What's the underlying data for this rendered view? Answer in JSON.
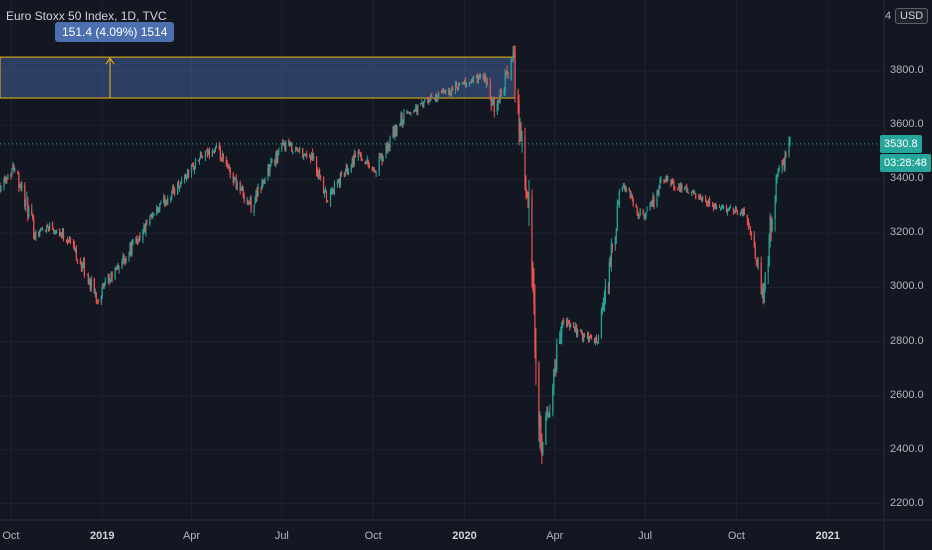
{
  "header": {
    "title": "Euro Stoxx 50 Index, 1D, TVC",
    "axis_menu_glyph": "4",
    "currency": "USD"
  },
  "measure_tool": {
    "label": "151.4 (4.09%) 1514",
    "color": "#4c6fb0",
    "border_color": "#f0b90b"
  },
  "price_badge": {
    "price": "3530.8",
    "countdown": "03:28:48",
    "color": "#26a69a"
  },
  "colors": {
    "background": "#131722",
    "grid": "#1e2230",
    "up": "#26a69a",
    "down": "#ef5350"
  },
  "chart_data": {
    "type": "candlestick",
    "title": "Euro Stoxx 50 Index, 1D, TVC",
    "y_ticks": [
      "3800.0",
      "3600.0",
      "3400.0",
      "3200.0",
      "3000.0",
      "2800.0",
      "2600.0",
      "2400.0",
      "2200.0"
    ],
    "x_ticks": [
      {
        "label": "Oct",
        "bold": false
      },
      {
        "label": "2019",
        "bold": true
      },
      {
        "label": "Apr",
        "bold": false
      },
      {
        "label": "Jul",
        "bold": false
      },
      {
        "label": "Oct",
        "bold": false
      },
      {
        "label": "2020",
        "bold": true
      },
      {
        "label": "Apr",
        "bold": false
      },
      {
        "label": "Jul",
        "bold": false
      },
      {
        "label": "Oct",
        "bold": false
      },
      {
        "label": "2021",
        "bold": true
      }
    ],
    "ylim": [
      2150,
      4030
    ],
    "last_price": 3530.8,
    "measured_range": {
      "from": 3700,
      "to": 3851.4
    },
    "close_path": [
      [
        "2018-09-20",
        3380
      ],
      [
        "2018-10-05",
        3450
      ],
      [
        "2018-10-25",
        3200
      ],
      [
        "2018-11-10",
        3230
      ],
      [
        "2018-11-30",
        3170
      ],
      [
        "2018-12-27",
        2960
      ],
      [
        "2019-01-31",
        3150
      ],
      [
        "2019-03-01",
        3300
      ],
      [
        "2019-04-10",
        3480
      ],
      [
        "2019-04-25",
        3510
      ],
      [
        "2019-05-31",
        3300
      ],
      [
        "2019-06-20",
        3450
      ],
      [
        "2019-07-04",
        3530
      ],
      [
        "2019-07-31",
        3480
      ],
      [
        "2019-08-15",
        3320
      ],
      [
        "2019-09-15",
        3500
      ],
      [
        "2019-10-03",
        3430
      ],
      [
        "2019-10-31",
        3630
      ],
      [
        "2019-11-30",
        3700
      ],
      [
        "2020-01-20",
        3780
      ],
      [
        "2020-01-31",
        3650
      ],
      [
        "2020-02-19",
        3850
      ],
      [
        "2020-03-05",
        3300
      ],
      [
        "2020-03-16",
        2500
      ],
      [
        "2020-03-18",
        2350
      ],
      [
        "2020-04-08",
        2880
      ],
      [
        "2020-04-30",
        2820
      ],
      [
        "2020-05-15",
        2800
      ],
      [
        "2020-06-08",
        3380
      ],
      [
        "2020-06-30",
        3250
      ],
      [
        "2020-07-20",
        3400
      ],
      [
        "2020-08-15",
        3350
      ],
      [
        "2020-09-05",
        3300
      ],
      [
        "2020-10-10",
        3280
      ],
      [
        "2020-10-29",
        2960
      ],
      [
        "2020-11-09",
        3380
      ],
      [
        "2020-11-24",
        3531
      ]
    ]
  }
}
